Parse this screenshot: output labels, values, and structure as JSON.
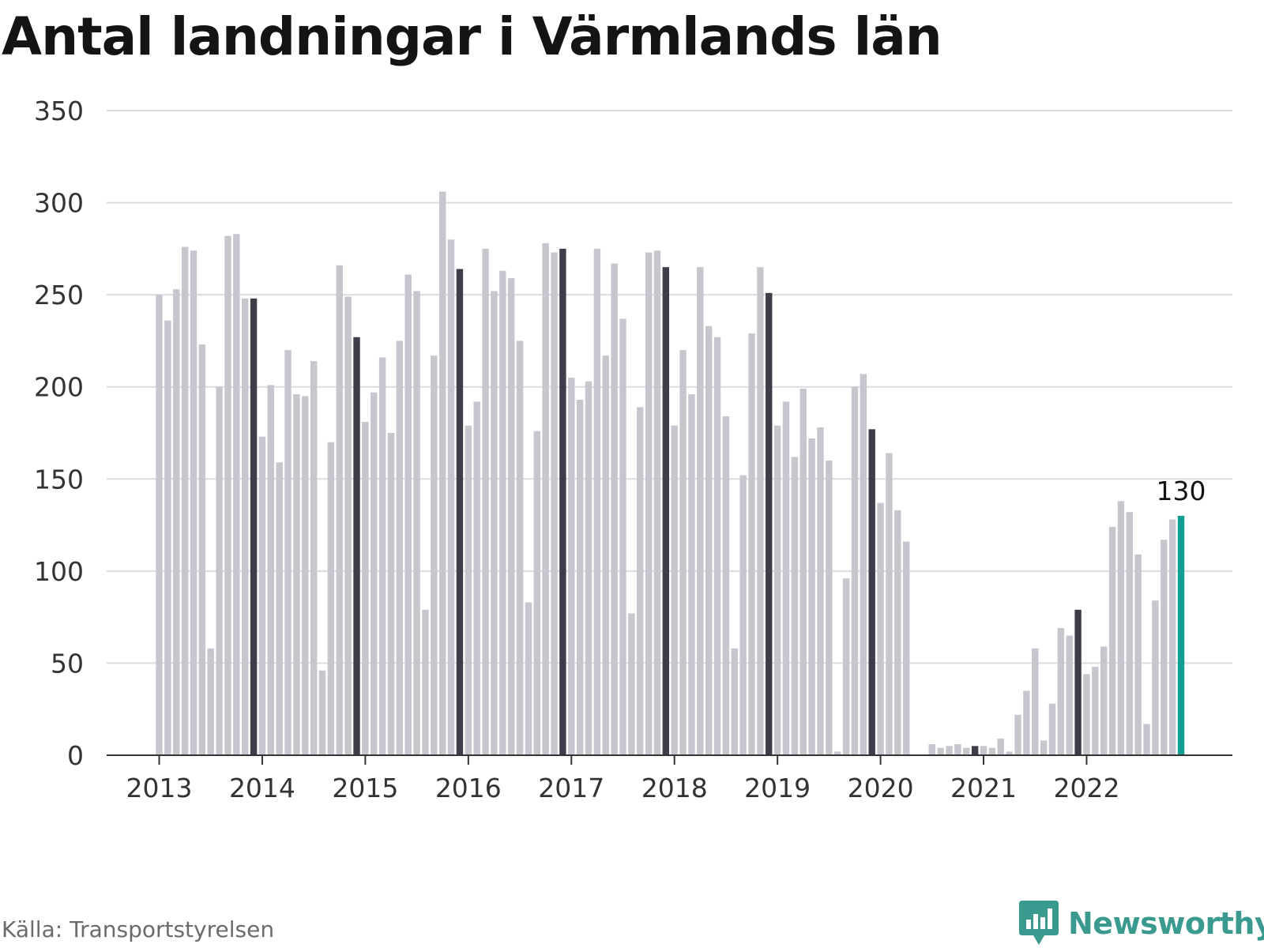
{
  "title": "Antal landningar i Värmlands län",
  "source": "Källa: Transportstyrelsen",
  "logo_text": "Newsworthy",
  "colors": {
    "bar": "#c6c6cf",
    "bar_december": "#3e3e4a",
    "bar_latest": "#129e95",
    "grid": "#dcdce0",
    "axis": "#333333",
    "tick_text": "#333333",
    "logo": "#3a9a8f"
  },
  "chart_data": {
    "type": "bar",
    "title": "Antal landningar i Värmlands län",
    "xlabel": "",
    "ylabel": "",
    "ylim": [
      0,
      350
    ],
    "yticks": [
      0,
      50,
      100,
      150,
      200,
      250,
      300,
      350
    ],
    "grid": true,
    "legend": "none",
    "x_tick_labels": [
      "2013",
      "2014",
      "2015",
      "2016",
      "2017",
      "2018",
      "2019",
      "2020",
      "2021",
      "2022"
    ],
    "start": "2013-01",
    "frequency": "monthly",
    "highlight_month": 12,
    "last_label": "130",
    "values": [
      250,
      236,
      253,
      276,
      274,
      223,
      58,
      200,
      282,
      283,
      248,
      248,
      173,
      201,
      159,
      220,
      196,
      195,
      214,
      46,
      170,
      266,
      249,
      227,
      181,
      197,
      216,
      175,
      225,
      261,
      252,
      79,
      217,
      306,
      280,
      264,
      179,
      192,
      275,
      252,
      263,
      259,
      225,
      83,
      176,
      278,
      273,
      275,
      205,
      193,
      203,
      275,
      217,
      267,
      237,
      77,
      189,
      273,
      274,
      265,
      179,
      220,
      196,
      265,
      233,
      227,
      184,
      58,
      152,
      229,
      265,
      251,
      179,
      192,
      162,
      199,
      172,
      178,
      160,
      2,
      96,
      200,
      207,
      177,
      137,
      164,
      133,
      116,
      0,
      0,
      6,
      4,
      5,
      6,
      4,
      5,
      5,
      4,
      9,
      2,
      22,
      35,
      58,
      8,
      28,
      69,
      65,
      79,
      44,
      48,
      59,
      124,
      138,
      132,
      109,
      17,
      84,
      117,
      128,
      130
    ]
  }
}
